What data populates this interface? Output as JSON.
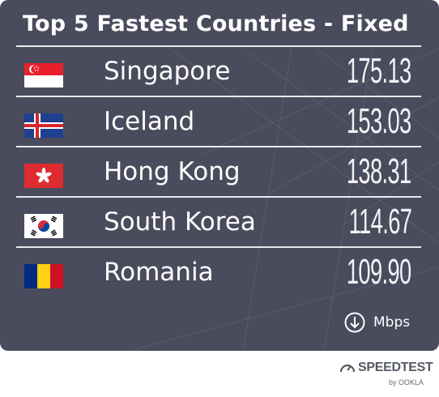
{
  "chart_data": {
    "type": "table",
    "title": "Top 5 Fastest Countries - Fixed",
    "categories": [
      "Singapore",
      "Iceland",
      "Hong Kong",
      "South Korea",
      "Romania"
    ],
    "values": [
      175.13,
      153.03,
      138.31,
      114.67,
      109.9
    ],
    "value_labels": [
      "175.13",
      "153.03",
      "138.31",
      "114.67",
      "109.90"
    ],
    "unit": "Mbps",
    "unit_icon": "download-arrow-icon",
    "flags": [
      "singapore-flag-icon",
      "iceland-flag-icon",
      "hong-kong-flag-icon",
      "south-korea-flag-icon",
      "romania-flag-icon"
    ]
  },
  "brand": {
    "name": "SPEEDTEST",
    "byline": "by OOKLA",
    "icon": "speedometer-icon"
  },
  "colors": {
    "card_background": "#4a4c5d",
    "text": "#ffffff",
    "separator": "#e9e9ee"
  }
}
